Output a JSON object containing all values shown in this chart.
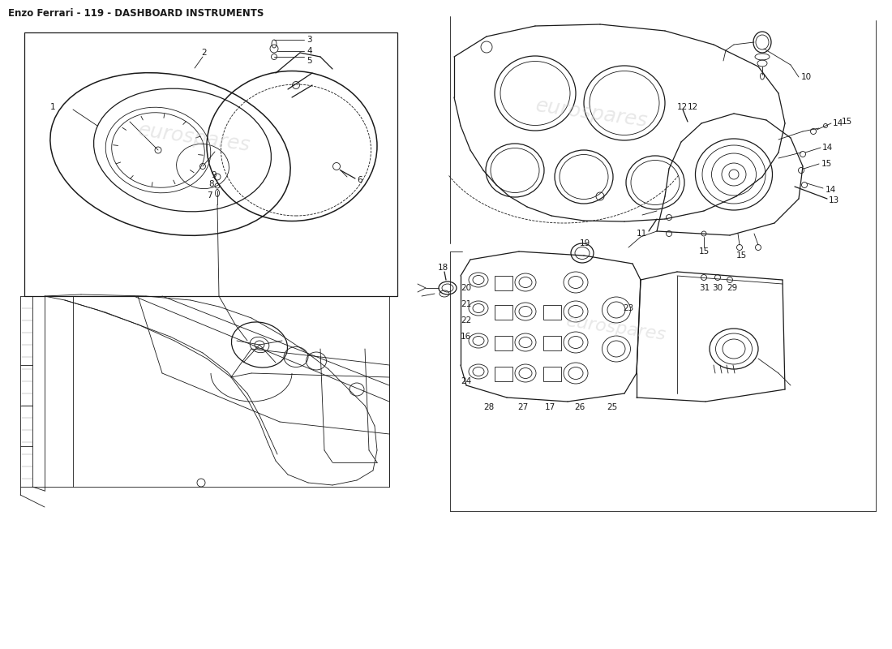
{
  "title": "Enzo Ferrari - 119 - DASHBOARD INSTRUMENTS",
  "title_fontsize": 8.5,
  "bg_color": "#ffffff",
  "line_color": "#1a1a1a",
  "text_color": "#1a1a1a",
  "watermark_color": "#cccccc",
  "watermark_text": "eurospares",
  "label_fontsize": 7.5,
  "lw_main": 0.9,
  "lw_thin": 0.6,
  "lw_thick": 1.1
}
